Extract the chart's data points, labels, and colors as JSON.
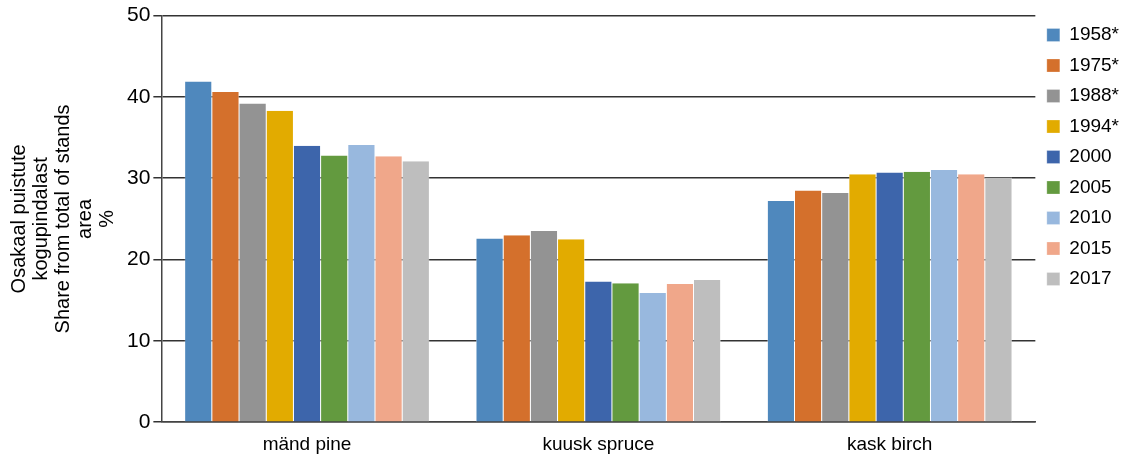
{
  "chart_data": {
    "type": "bar",
    "categories": [
      "mänd pine",
      "kuusk spruce",
      "kask birch"
    ],
    "ylabel": "Osakaal puistute\nkogupindalast\nShare from total of stands\narea\n%",
    "series": [
      {
        "name": "1958*",
        "color": "#4f88bd",
        "values": [
          41.9,
          22.6,
          27.2
        ]
      },
      {
        "name": "1975*",
        "color": "#d4702c",
        "values": [
          40.6,
          23.0,
          28.5
        ]
      },
      {
        "name": "1988*",
        "color": "#939393",
        "values": [
          39.2,
          23.5,
          28.2
        ]
      },
      {
        "name": "1994*",
        "color": "#e2ab00",
        "values": [
          38.3,
          22.5,
          30.5
        ]
      },
      {
        "name": "2000",
        "color": "#3d65ab",
        "values": [
          34.0,
          17.3,
          30.7
        ]
      },
      {
        "name": "2005",
        "color": "#639a3f",
        "values": [
          32.8,
          17.1,
          30.8
        ]
      },
      {
        "name": "2010",
        "color": "#98b8de",
        "values": [
          34.1,
          15.9,
          31.0
        ]
      },
      {
        "name": "2015",
        "color": "#f0a78a",
        "values": [
          32.7,
          17.0,
          30.5
        ]
      },
      {
        "name": "2017",
        "color": "#bebebe",
        "values": [
          32.1,
          17.5,
          30.1
        ]
      }
    ],
    "ylim": [
      0,
      50
    ],
    "yticks": [
      0,
      10,
      20,
      30,
      40,
      50
    ],
    "grid": "y",
    "legend": "right"
  }
}
